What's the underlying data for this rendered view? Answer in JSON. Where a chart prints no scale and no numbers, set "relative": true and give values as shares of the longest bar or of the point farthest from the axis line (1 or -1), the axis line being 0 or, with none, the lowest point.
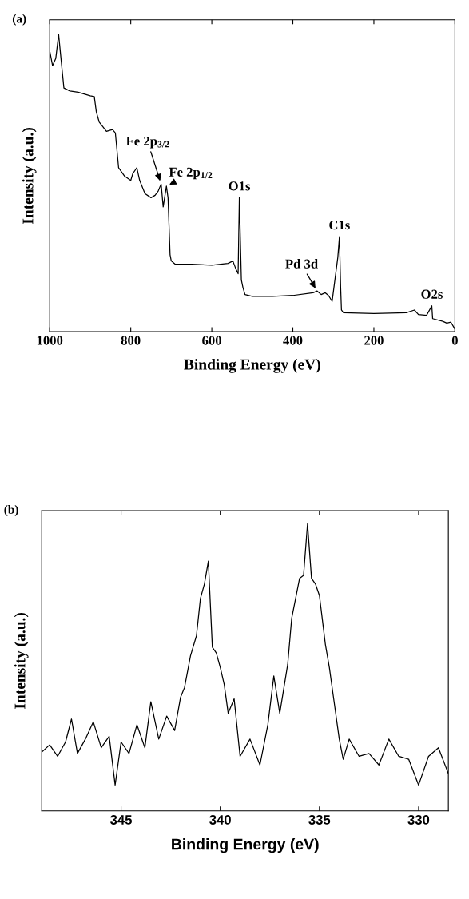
{
  "chart_data": [
    {
      "type": "line",
      "title": "(a)",
      "xlabel": "Binding Energy (eV)",
      "ylabel": "Intensity (a.u.)",
      "relative": true,
      "tick_labels": "x",
      "xlim": [
        1000,
        0
      ],
      "xticks": [
        1000,
        800,
        600,
        400,
        200,
        0
      ],
      "x": [
        1000,
        993,
        985,
        978,
        972,
        965,
        950,
        930,
        900,
        890,
        885,
        878,
        860,
        845,
        838,
        830,
        815,
        800,
        795,
        785,
        778,
        765,
        750,
        740,
        732,
        725,
        720,
        712,
        708,
        703,
        700,
        690,
        650,
        600,
        560,
        548,
        540,
        535,
        532,
        527,
        523,
        518,
        500,
        450,
        400,
        350,
        340,
        330,
        320,
        312,
        303,
        289,
        285,
        282,
        280,
        275,
        200,
        120,
        100,
        90,
        70,
        57,
        55,
        30,
        20,
        10,
        0
      ],
      "series": [
        {
          "color": "#000000",
          "values": [
            0.945,
            0.895,
            0.92,
            1.0,
            0.916,
            0.82,
            0.81,
            0.806,
            0.794,
            0.791,
            0.74,
            0.706,
            0.674,
            0.68,
            0.669,
            0.552,
            0.523,
            0.509,
            0.532,
            0.552,
            0.509,
            0.465,
            0.451,
            0.459,
            0.474,
            0.497,
            0.42,
            0.49,
            0.45,
            0.259,
            0.238,
            0.227,
            0.227,
            0.224,
            0.23,
            0.238,
            0.209,
            0.195,
            0.451,
            0.174,
            0.148,
            0.125,
            0.119,
            0.119,
            0.122,
            0.131,
            0.137,
            0.125,
            0.131,
            0.122,
            0.102,
            0.25,
            0.32,
            0.15,
            0.073,
            0.064,
            0.061,
            0.064,
            0.073,
            0.058,
            0.055,
            0.087,
            0.044,
            0.035,
            0.029,
            0.032,
            0.009
          ]
        }
      ],
      "annotations": [
        {
          "text": "Fe 2p$_{3/2}$",
          "x": 725,
          "y": 0.497
        },
        {
          "text": "Fe 2p$_{1/2}$",
          "x": 712,
          "y": 0.49
        },
        {
          "text": "O1s",
          "x": 532,
          "y": 0.451
        },
        {
          "text": "Pd 3d",
          "x": 340,
          "y": 0.137
        },
        {
          "text": "C1s",
          "x": 285,
          "y": 0.32
        },
        {
          "text": "O2s",
          "x": 57,
          "y": 0.087
        }
      ]
    },
    {
      "type": "line",
      "title": "(b)",
      "xlabel": "Binding Energy (eV)",
      "ylabel": "Intensity (a.u.)",
      "relative": true,
      "tick_labels": "x",
      "xlim": [
        349,
        328.5
      ],
      "xticks": [
        345,
        340,
        335,
        330
      ],
      "x": [
        349.0,
        348.6,
        348.2,
        347.8,
        347.5,
        347.2,
        346.8,
        346.4,
        346.0,
        345.6,
        345.3,
        345.0,
        344.6,
        344.2,
        343.8,
        343.5,
        343.1,
        342.7,
        342.3,
        342.0,
        341.8,
        341.5,
        341.2,
        341.0,
        340.8,
        340.6,
        340.4,
        340.2,
        340.0,
        339.8,
        339.6,
        339.3,
        339.0,
        338.5,
        338.0,
        337.6,
        337.3,
        337.0,
        336.6,
        336.4,
        336.0,
        335.8,
        335.6,
        335.4,
        335.2,
        335.0,
        334.7,
        334.5,
        334.3,
        334.0,
        333.8,
        333.5,
        333.0,
        332.5,
        332.0,
        331.5,
        331.0,
        330.5,
        330.0,
        329.5,
        329.0,
        328.5
      ],
      "series": [
        {
          "color": "#000000",
          "values": [
            0.205,
            0.23,
            0.19,
            0.24,
            0.32,
            0.2,
            0.25,
            0.31,
            0.22,
            0.26,
            0.09,
            0.24,
            0.2,
            0.3,
            0.22,
            0.38,
            0.25,
            0.33,
            0.28,
            0.396,
            0.43,
            0.54,
            0.61,
            0.74,
            0.79,
            0.87,
            0.57,
            0.55,
            0.5,
            0.44,
            0.34,
            0.39,
            0.19,
            0.25,
            0.16,
            0.3,
            0.47,
            0.34,
            0.51,
            0.67,
            0.81,
            0.82,
            1.0,
            0.81,
            0.79,
            0.75,
            0.58,
            0.5,
            0.4,
            0.25,
            0.18,
            0.25,
            0.19,
            0.2,
            0.16,
            0.25,
            0.19,
            0.18,
            0.09,
            0.19,
            0.22,
            0.13
          ]
        }
      ]
    }
  ]
}
